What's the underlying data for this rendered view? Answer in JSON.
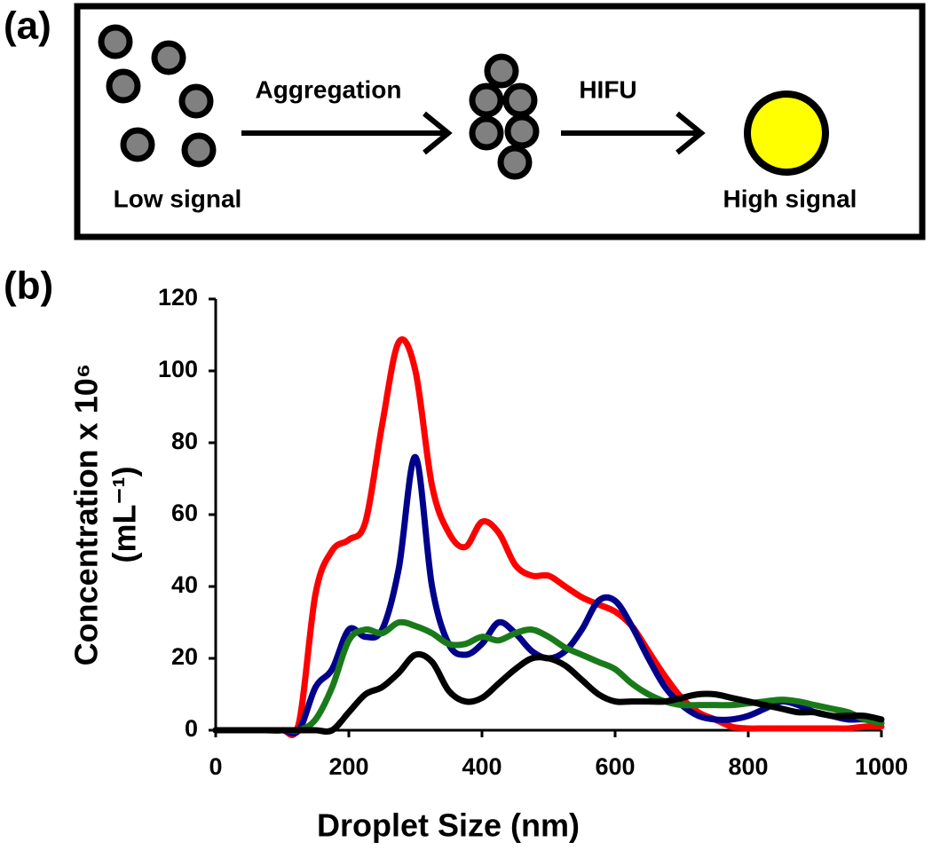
{
  "panel_a": {
    "label": "(a)",
    "left_caption": "Low signal",
    "arrow1_label": "Aggregation",
    "arrow2_label": "HIFU",
    "right_caption": "High signal"
  },
  "chart_data": {
    "type": "line",
    "panel_label": "(b)",
    "xlabel": "Droplet Size (nm)",
    "ylabel": [
      "Concentration x 10⁶",
      "(mL⁻¹)"
    ],
    "x": [
      0,
      25,
      50,
      75,
      100,
      125,
      150,
      175,
      200,
      225,
      250,
      275,
      300,
      325,
      350,
      375,
      400,
      425,
      450,
      475,
      500,
      525,
      550,
      575,
      600,
      625,
      650,
      675,
      700,
      725,
      750,
      775,
      800,
      825,
      850,
      875,
      900,
      925,
      950,
      975,
      1000
    ],
    "series": [
      {
        "color": "#ff0000",
        "values": [
          0,
          0,
          0,
          0,
          0,
          2,
          38,
          50,
          53,
          58,
          85,
          108,
          100,
          68,
          55,
          51,
          58,
          55,
          46,
          43,
          43,
          40,
          37,
          35,
          33,
          29,
          22,
          15,
          9,
          5,
          3,
          1,
          0.5,
          0.5,
          0.5,
          0.5,
          0.5,
          0.5,
          0.5,
          1,
          1
        ]
      },
      {
        "color": "#00008b",
        "values": [
          0,
          0,
          0,
          0,
          0,
          0,
          12,
          17,
          28,
          26,
          28,
          45,
          76,
          40,
          24,
          21,
          24,
          30,
          27,
          22,
          20,
          22,
          28,
          36,
          36,
          29,
          20,
          12,
          7,
          4,
          3,
          3,
          4,
          6,
          8,
          7,
          5,
          4,
          3,
          3,
          2
        ]
      },
      {
        "color": "#1a7a1a",
        "values": [
          0,
          0,
          0,
          0,
          0,
          0,
          3,
          12,
          25,
          28,
          27,
          30,
          29,
          27,
          24,
          24,
          26,
          25,
          27,
          28,
          26,
          23,
          21,
          19,
          17,
          13,
          10,
          8,
          7,
          7,
          7,
          7,
          7.5,
          8,
          8.5,
          8,
          7,
          6,
          5,
          3,
          2
        ]
      },
      {
        "color": "#000000",
        "values": [
          0,
          0,
          0,
          0,
          0,
          0,
          0,
          0,
          5,
          10,
          12,
          16,
          21,
          19,
          11,
          8,
          9,
          13,
          17,
          20,
          20,
          18,
          14,
          10,
          8,
          8,
          8,
          8,
          9,
          10,
          10,
          9,
          8,
          7,
          6,
          5,
          5,
          4,
          4,
          4,
          3
        ]
      }
    ],
    "xlim": [
      0,
      1000
    ],
    "xticks": [
      0,
      200,
      400,
      600,
      800,
      1000
    ],
    "ylim": [
      0,
      120
    ],
    "yticks": [
      0,
      20,
      40,
      60,
      80,
      100,
      120
    ]
  }
}
